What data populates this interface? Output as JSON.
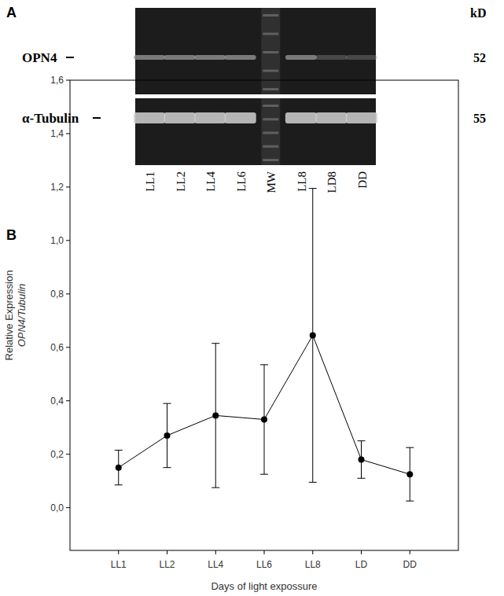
{
  "panels": [
    "A",
    "B"
  ],
  "blot": {
    "unit": "kD",
    "bands": [
      {
        "label": "OPN4",
        "size": 52
      },
      {
        "label": "α-Tubulin",
        "size": 55
      }
    ],
    "lanes": [
      "LL1",
      "LL2",
      "LL4",
      "LL6",
      "MW",
      "LL8",
      "LD8",
      "DD"
    ]
  },
  "chart_data": {
    "type": "line",
    "xlabel": "Days of light expossure",
    "ylabel": [
      "Relative Expression",
      "OPN4/Tubulin"
    ],
    "categories": [
      "LL1",
      "LL2",
      "LL4",
      "LL6",
      "LL8",
      "LD",
      "DD"
    ],
    "values": [
      0.15,
      0.27,
      0.345,
      0.33,
      0.645,
      0.18,
      0.125
    ],
    "errors": [
      0.065,
      0.12,
      0.27,
      0.205,
      0.55,
      0.07,
      0.1
    ],
    "color": "#000000",
    "marker": "circle",
    "line_style": "solid",
    "ylim": [
      -0.16,
      1.6
    ],
    "yticks": [
      {
        "value": 0,
        "label": "0,0"
      },
      {
        "value": 0.2,
        "label": "0,2"
      },
      {
        "value": 0.4,
        "label": "0,4"
      },
      {
        "value": 0.6,
        "label": "0,6"
      },
      {
        "value": 0.8,
        "label": "0,8"
      },
      {
        "value": 1,
        "label": "1,0"
      },
      {
        "value": 1.2,
        "label": "1,2"
      },
      {
        "value": 1.4,
        "label": "1,4"
      },
      {
        "value": 1.6,
        "label": "1,6"
      }
    ],
    "grid": false
  }
}
